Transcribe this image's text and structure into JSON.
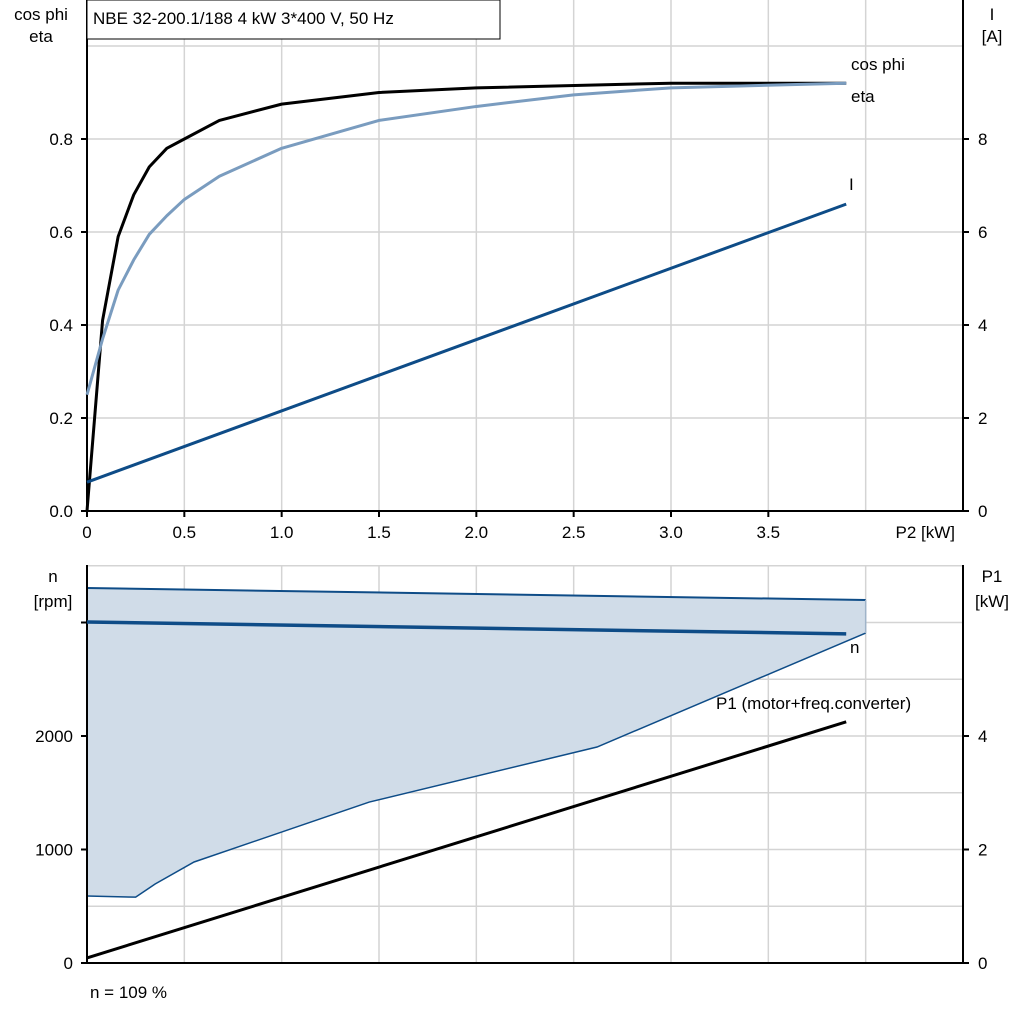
{
  "colors": {
    "eta": "#000000",
    "cos_phi": "#7a9cbf",
    "current": "#0e4c87",
    "speed": "#0e4c87",
    "speed_area": "#d0dce8",
    "p1": "#000000",
    "grid": "#d4d4d4"
  },
  "chart_data": [
    {
      "type": "line",
      "title": "NBE 32-200.1/188   4 kW   3*400 V, 50 Hz",
      "xlabel": "P2 [kW]",
      "ylabel_left": [
        "cos phi",
        "eta"
      ],
      "ylabel_right": [
        "I",
        "[A]"
      ],
      "xlim": [
        0,
        4.5
      ],
      "ylim_left": [
        0,
        1.0
      ],
      "ylim_right": [
        0,
        10
      ],
      "xticks": [
        "0",
        "0.5",
        "1.0",
        "1.5",
        "2.0",
        "2.5",
        "3.0",
        "3.5"
      ],
      "yticks_left": [
        "0.0",
        "0.2",
        "0.4",
        "0.6",
        "0.8"
      ],
      "yticks_right": [
        "0",
        "2",
        "4",
        "6",
        "8"
      ],
      "grid": true,
      "series": [
        {
          "name": "eta",
          "axis": "left",
          "x": [
            0,
            0.08,
            0.16,
            0.24,
            0.32,
            0.41,
            0.5,
            0.68,
            1.0,
            1.5,
            2.0,
            3.0,
            3.9
          ],
          "y": [
            0,
            0.41,
            0.59,
            0.68,
            0.74,
            0.78,
            0.8,
            0.84,
            0.875,
            0.9,
            0.91,
            0.92,
            0.92
          ]
        },
        {
          "name": "cos phi",
          "axis": "left",
          "x": [
            0,
            0.08,
            0.16,
            0.24,
            0.32,
            0.41,
            0.5,
            0.68,
            1.0,
            1.5,
            2.0,
            2.5,
            3.0,
            3.9
          ],
          "y": [
            0.25,
            0.37,
            0.475,
            0.54,
            0.595,
            0.635,
            0.67,
            0.72,
            0.78,
            0.84,
            0.87,
            0.895,
            0.91,
            0.92
          ]
        },
        {
          "name": "I",
          "axis": "right",
          "x": [
            0,
            3.9
          ],
          "y": [
            0.62,
            6.6
          ]
        }
      ]
    },
    {
      "type": "line",
      "ylabel_left": [
        "n",
        "[rpm]"
      ],
      "ylabel_right": [
        "P1",
        "[kW]"
      ],
      "xlim": [
        0,
        4.5
      ],
      "ylim_left": [
        0,
        3500
      ],
      "ylim_right": [
        0,
        6.17
      ],
      "yticks_left": [
        "0",
        "1000",
        "2000"
      ],
      "yticks_right": [
        "0",
        "2",
        "4"
      ],
      "grid": true,
      "annotation": "n = 109 %",
      "series": [
        {
          "name": "n",
          "axis": "left",
          "x": [
            0,
            3.9
          ],
          "y": [
            3004,
            2900
          ]
        },
        {
          "name": "P1 (motor+freq.converter)",
          "axis": "right",
          "x": [
            0,
            3.9
          ],
          "y": [
            0.09,
            4.25
          ]
        }
      ],
      "speed_range": {
        "upper": {
          "x": [
            0,
            4.0
          ],
          "y": [
            3304,
            3198
          ]
        },
        "lower": {
          "x": [
            0,
            0.25,
            0.35,
            0.55,
            1.45,
            2.62,
            4.0
          ],
          "y": [
            590,
            580,
            696,
            890,
            1418,
            1903,
            2907
          ]
        }
      }
    }
  ]
}
